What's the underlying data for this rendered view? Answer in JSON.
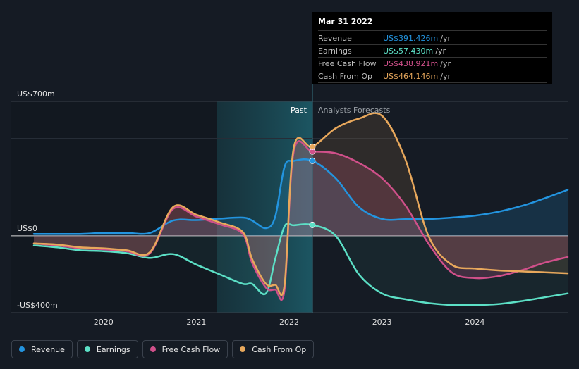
{
  "chart_data": {
    "type": "line",
    "title": "",
    "xlabel": "",
    "ylabel": "",
    "ylim": [
      -400,
      700
    ],
    "y_tick_labels": [
      {
        "value": 700,
        "label": "US$700m"
      },
      {
        "value": 0,
        "label": "US$0"
      },
      {
        "value": -400,
        "label": "-US$400m"
      }
    ],
    "x_ticks": [
      2020,
      2021,
      2022,
      2023,
      2024
    ],
    "xlim": [
      2019.25,
      2025.0
    ],
    "past_label": "Past",
    "forecast_label": "Analysts Forecasts",
    "forecast_start": 2022.25,
    "shaded_start": 2021.22,
    "legend_position": "bottom-left",
    "grid": "horizontal",
    "series": [
      {
        "name": "Revenue",
        "color": "#2394df",
        "x": [
          2019.25,
          2019.5,
          2019.75,
          2020.0,
          2020.25,
          2020.5,
          2020.75,
          2021.0,
          2021.25,
          2021.5,
          2021.6,
          2021.75,
          2021.85,
          2021.95,
          2022.05,
          2022.25,
          2022.5,
          2022.75,
          2023.0,
          2023.25,
          2023.5,
          2023.75,
          2024.0,
          2024.25,
          2024.5,
          2024.75,
          2025.0
        ],
        "y": [
          10,
          10,
          10,
          15,
          15,
          15,
          80,
          82,
          90,
          95,
          80,
          40,
          100,
          360,
          390,
          391,
          300,
          150,
          88,
          87,
          88,
          95,
          105,
          125,
          155,
          195,
          240
        ]
      },
      {
        "name": "Earnings",
        "color": "#5ce0c6",
        "x": [
          2019.25,
          2019.5,
          2019.75,
          2020.0,
          2020.25,
          2020.5,
          2020.75,
          2021.0,
          2021.25,
          2021.5,
          2021.6,
          2021.75,
          2021.85,
          2021.95,
          2022.05,
          2022.25,
          2022.5,
          2022.75,
          2023.0,
          2023.25,
          2023.5,
          2023.75,
          2024.0,
          2024.25,
          2024.5,
          2024.75,
          2025.0
        ],
        "y": [
          -50,
          -60,
          -75,
          -80,
          -90,
          -115,
          -95,
          -150,
          -200,
          -250,
          -250,
          -300,
          -120,
          50,
          55,
          57,
          0,
          -200,
          -300,
          -330,
          -350,
          -360,
          -360,
          -355,
          -340,
          -320,
          -300
        ]
      },
      {
        "name": "Free Cash Flow",
        "color": "#d0508a",
        "x": [
          2019.25,
          2019.5,
          2019.75,
          2020.0,
          2020.25,
          2020.5,
          2020.75,
          2021.0,
          2021.25,
          2021.5,
          2021.6,
          2021.75,
          2021.85,
          2021.95,
          2022.05,
          2022.25,
          2022.5,
          2022.75,
          2023.0,
          2023.25,
          2023.5,
          2023.75,
          2024.0,
          2024.25,
          2024.5,
          2024.75,
          2025.0
        ],
        "y": [
          -40,
          -50,
          -65,
          -70,
          -80,
          -90,
          140,
          100,
          60,
          10,
          -140,
          -270,
          -280,
          -280,
          440,
          439,
          430,
          380,
          300,
          160,
          -40,
          -190,
          -220,
          -210,
          -180,
          -140,
          -110
        ]
      },
      {
        "name": "Cash From Op",
        "color": "#e8a85c",
        "x": [
          2019.25,
          2019.5,
          2019.75,
          2020.0,
          2020.25,
          2020.5,
          2020.75,
          2021.0,
          2021.25,
          2021.5,
          2021.6,
          2021.75,
          2021.85,
          2021.95,
          2022.05,
          2022.25,
          2022.5,
          2022.75,
          2023.0,
          2023.25,
          2023.5,
          2023.75,
          2024.0,
          2024.25,
          2024.5,
          2024.75,
          2025.0
        ],
        "y": [
          -40,
          -45,
          -60,
          -65,
          -75,
          -85,
          150,
          110,
          70,
          20,
          -120,
          -250,
          -255,
          -255,
          460,
          464,
          560,
          610,
          625,
          400,
          0,
          -150,
          -170,
          -180,
          -185,
          -190,
          -195
        ]
      }
    ]
  },
  "tooltip": {
    "date": "Mar 31 2022",
    "rows": [
      {
        "name": "Revenue",
        "value": "US$391.426m",
        "unit": "/yr",
        "color": "#2394df"
      },
      {
        "name": "Earnings",
        "value": "US$57.430m",
        "unit": "/yr",
        "color": "#5ce0c6"
      },
      {
        "name": "Free Cash Flow",
        "value": "US$438.921m",
        "unit": "/yr",
        "color": "#d0508a"
      },
      {
        "name": "Cash From Op",
        "value": "US$464.146m",
        "unit": "/yr",
        "color": "#e8a85c"
      }
    ]
  },
  "legend": [
    {
      "label": "Revenue",
      "color": "#2394df"
    },
    {
      "label": "Earnings",
      "color": "#5ce0c6"
    },
    {
      "label": "Free Cash Flow",
      "color": "#d0508a"
    },
    {
      "label": "Cash From Op",
      "color": "#e8a85c"
    }
  ]
}
